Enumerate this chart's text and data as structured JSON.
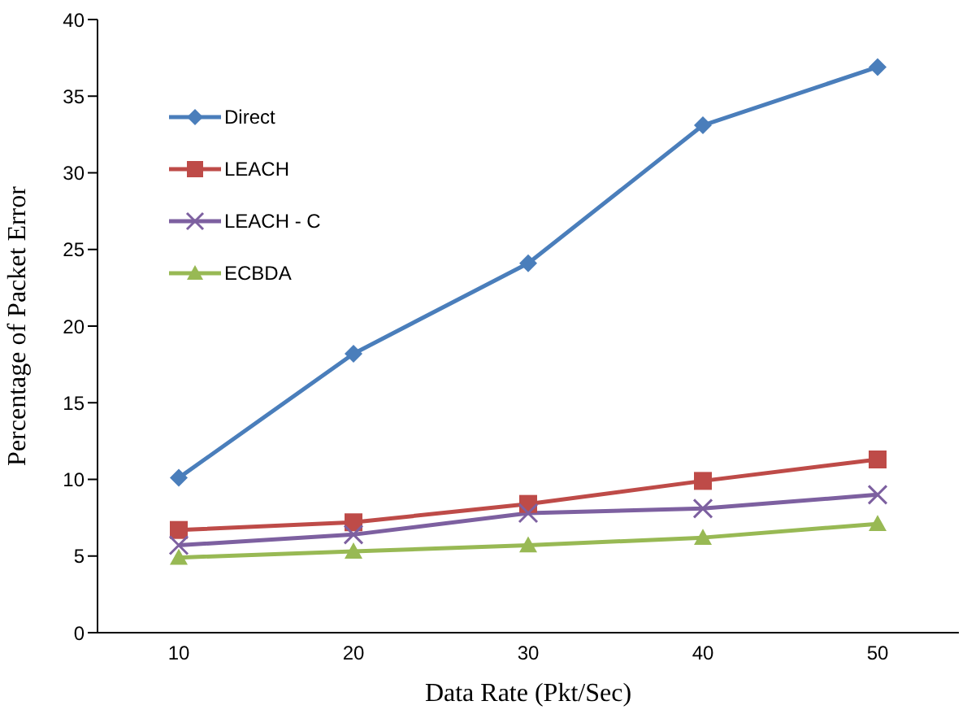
{
  "chart_data": {
    "type": "line",
    "xlabel": "Data Rate (Pkt/Sec)",
    "ylabel": "Percentage of Packet Error",
    "categories": [
      "10",
      "20",
      "30",
      "40",
      "50"
    ],
    "series": [
      {
        "name": "Direct",
        "color": "#4a7ebb",
        "marker": "diamond",
        "values": [
          10.1,
          18.2,
          24.1,
          33.1,
          36.9
        ]
      },
      {
        "name": "LEACH",
        "color": "#be4b48",
        "marker": "square",
        "values": [
          6.7,
          7.2,
          8.4,
          9.9,
          11.3
        ]
      },
      {
        "name": "LEACH - C",
        "color": "#7d60a0",
        "marker": "cross",
        "values": [
          5.7,
          6.4,
          7.8,
          8.1,
          9.0
        ]
      },
      {
        "name": "ECBDA",
        "color": "#98b954",
        "marker": "triangle",
        "values": [
          4.9,
          5.3,
          5.7,
          6.2,
          7.1
        ]
      }
    ],
    "ylim": [
      0,
      40
    ],
    "yticks": [
      0,
      5,
      10,
      15,
      20,
      25,
      30,
      35,
      40
    ],
    "grid": false,
    "legend": "top left",
    "line_style": "solid"
  }
}
